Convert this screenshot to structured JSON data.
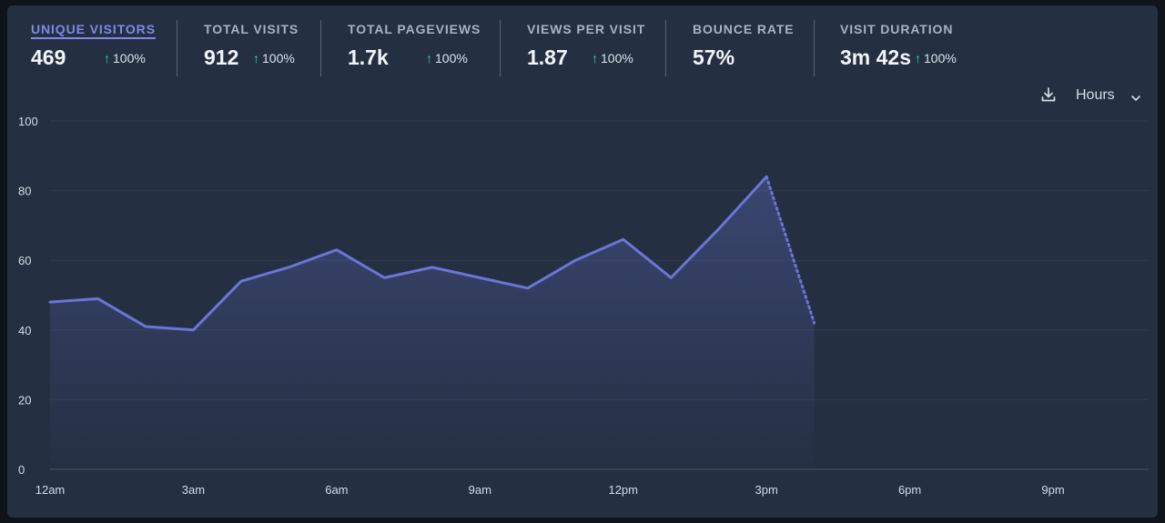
{
  "metrics": [
    {
      "label": "UNIQUE VISITORS",
      "value": "469",
      "change": "100%",
      "active": true
    },
    {
      "label": "TOTAL VISITS",
      "value": "912",
      "change": "100%"
    },
    {
      "label": "TOTAL PAGEVIEWS",
      "value": "1.7k",
      "change": "100%"
    },
    {
      "label": "VIEWS PER VISIT",
      "value": "1.87",
      "change": "100%"
    },
    {
      "label": "BOUNCE RATE",
      "value": "57%",
      "change": ""
    },
    {
      "label": "VISIT DURATION",
      "value": "3m 42s",
      "change": "100%"
    }
  ],
  "toolbar": {
    "download_icon": "download-icon",
    "interval": "Hours",
    "interval_icon": "chevron-down-icon"
  },
  "colors": {
    "accent": "#6c74d6",
    "positive": "#34d399",
    "panel_bg": "#243042"
  },
  "chart_data": {
    "type": "area",
    "x": [
      "12am",
      "1am",
      "2am",
      "3am",
      "4am",
      "5am",
      "6am",
      "7am",
      "8am",
      "9am",
      "10am",
      "11am",
      "12pm",
      "1pm",
      "2pm",
      "3pm",
      "4pm"
    ],
    "series": [
      {
        "values": [
          48,
          49,
          41,
          40,
          54,
          58,
          63,
          55,
          58,
          55,
          52,
          60,
          66,
          55,
          69,
          84,
          42
        ]
      }
    ],
    "incomplete_from_index": 15,
    "x_tick_labels": [
      "12am",
      "3am",
      "6am",
      "9am",
      "12pm",
      "3pm",
      "6pm",
      "9pm"
    ],
    "x_tick_hours": [
      0,
      3,
      6,
      9,
      12,
      15,
      18,
      21
    ],
    "x_range_hours": [
      0,
      23
    ],
    "y_ticks": [
      0,
      20,
      40,
      60,
      80,
      100
    ],
    "ylim": [
      0,
      100
    ],
    "grid": true,
    "title": "",
    "xlabel": "",
    "ylabel": ""
  }
}
